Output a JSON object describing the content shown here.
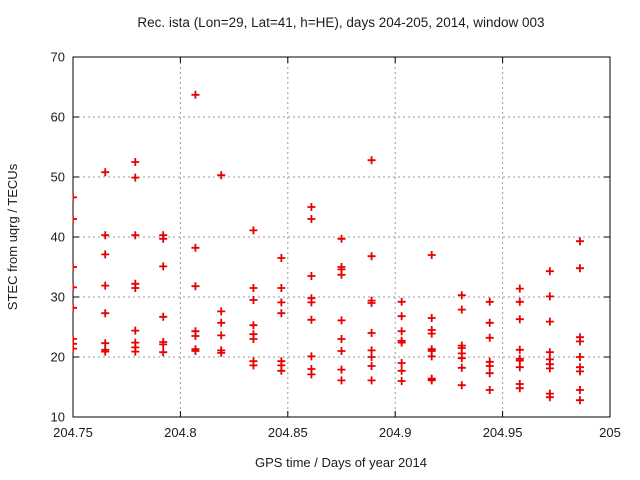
{
  "title": "Rec. ista (Lon=29, Lat=41, h=HE), days 204-205, 2014, window 003",
  "colors": {
    "background": "#ffffff",
    "marker": "#e60000",
    "grid": "#9a9a9a",
    "axis": "#000000",
    "text": "#1c1c1c"
  },
  "chart_data": {
    "type": "scatter",
    "title": "Rec. ista (Lon=29, Lat=41, h=HE), days 204-205, 2014, window 003",
    "xlabel": "GPS time / Days of year 2014",
    "ylabel": "STEC from uqrg / TECUs",
    "xlim": [
      204.75,
      205
    ],
    "ylim": [
      10,
      70
    ],
    "x_ticks": [
      204.75,
      204.8,
      204.85,
      204.9,
      204.95,
      205
    ],
    "x_tick_labels": [
      "204.75",
      "204.8",
      "204.85",
      "204.9",
      "204.95",
      "205"
    ],
    "y_ticks": [
      10,
      20,
      30,
      40,
      50,
      60,
      70
    ],
    "y_tick_labels": [
      "10",
      "20",
      "30",
      "40",
      "50",
      "60",
      "70"
    ],
    "grid": true,
    "grid_style": "dotted",
    "legend": "none",
    "marker": "plus",
    "series": [
      {
        "name": "STEC from uqrg",
        "color": "#e60000",
        "points": [
          [
            204.75,
            46.6
          ],
          [
            204.75,
            43.0
          ],
          [
            204.75,
            35.0
          ],
          [
            204.75,
            31.6
          ],
          [
            204.75,
            28.2
          ],
          [
            204.75,
            23.0
          ],
          [
            204.75,
            22.2
          ],
          [
            204.75,
            21.4
          ],
          [
            204.765,
            50.8
          ],
          [
            204.765,
            40.3
          ],
          [
            204.765,
            37.1
          ],
          [
            204.765,
            31.9
          ],
          [
            204.765,
            27.3
          ],
          [
            204.765,
            22.3
          ],
          [
            204.765,
            21.2
          ],
          [
            204.765,
            20.9
          ],
          [
            204.779,
            52.5
          ],
          [
            204.779,
            49.9
          ],
          [
            204.779,
            40.3
          ],
          [
            204.779,
            32.2
          ],
          [
            204.779,
            31.5
          ],
          [
            204.779,
            24.4
          ],
          [
            204.779,
            22.4
          ],
          [
            204.779,
            21.6
          ],
          [
            204.779,
            20.9
          ],
          [
            204.792,
            40.3
          ],
          [
            204.792,
            39.7
          ],
          [
            204.792,
            35.1
          ],
          [
            204.792,
            26.7
          ],
          [
            204.792,
            22.5
          ],
          [
            204.792,
            22.1
          ],
          [
            204.792,
            20.8
          ],
          [
            204.807,
            63.7
          ],
          [
            204.807,
            38.2
          ],
          [
            204.807,
            31.8
          ],
          [
            204.807,
            24.3
          ],
          [
            204.807,
            23.5
          ],
          [
            204.807,
            21.3
          ],
          [
            204.807,
            21.0
          ],
          [
            204.819,
            50.3
          ],
          [
            204.819,
            27.6
          ],
          [
            204.819,
            25.7
          ],
          [
            204.819,
            23.6
          ],
          [
            204.819,
            21.1
          ],
          [
            204.819,
            20.7
          ],
          [
            204.834,
            41.1
          ],
          [
            204.834,
            31.5
          ],
          [
            204.834,
            29.5
          ],
          [
            204.834,
            25.3
          ],
          [
            204.834,
            23.8
          ],
          [
            204.834,
            23.0
          ],
          [
            204.834,
            19.3
          ],
          [
            204.834,
            18.6
          ],
          [
            204.847,
            36.5
          ],
          [
            204.847,
            31.5
          ],
          [
            204.847,
            29.1
          ],
          [
            204.847,
            27.3
          ],
          [
            204.847,
            19.3
          ],
          [
            204.847,
            18.6
          ],
          [
            204.847,
            17.7
          ],
          [
            204.861,
            45.0
          ],
          [
            204.861,
            43.0
          ],
          [
            204.861,
            33.5
          ],
          [
            204.861,
            29.8
          ],
          [
            204.861,
            29.1
          ],
          [
            204.861,
            26.2
          ],
          [
            204.861,
            20.1
          ],
          [
            204.861,
            18.0
          ],
          [
            204.861,
            17.1
          ],
          [
            204.875,
            39.7
          ],
          [
            204.875,
            35.0
          ],
          [
            204.875,
            34.6
          ],
          [
            204.875,
            33.7
          ],
          [
            204.875,
            26.1
          ],
          [
            204.875,
            23.0
          ],
          [
            204.875,
            21.0
          ],
          [
            204.875,
            17.9
          ],
          [
            204.875,
            16.1
          ],
          [
            204.889,
            52.8
          ],
          [
            204.889,
            36.8
          ],
          [
            204.889,
            29.4
          ],
          [
            204.889,
            29.0
          ],
          [
            204.889,
            24.0
          ],
          [
            204.889,
            21.1
          ],
          [
            204.889,
            20.0
          ],
          [
            204.889,
            18.5
          ],
          [
            204.889,
            16.1
          ],
          [
            204.903,
            29.2
          ],
          [
            204.903,
            26.8
          ],
          [
            204.903,
            24.3
          ],
          [
            204.903,
            22.7
          ],
          [
            204.903,
            22.4
          ],
          [
            204.903,
            19.0
          ],
          [
            204.903,
            17.7
          ],
          [
            204.903,
            16.0
          ],
          [
            204.917,
            37.0
          ],
          [
            204.917,
            26.5
          ],
          [
            204.917,
            24.5
          ],
          [
            204.917,
            23.9
          ],
          [
            204.917,
            21.3
          ],
          [
            204.917,
            21.0
          ],
          [
            204.917,
            20.1
          ],
          [
            204.917,
            16.4
          ],
          [
            204.917,
            16.1
          ],
          [
            204.931,
            30.3
          ],
          [
            204.931,
            27.9
          ],
          [
            204.931,
            21.9
          ],
          [
            204.931,
            21.5
          ],
          [
            204.931,
            20.6
          ],
          [
            204.931,
            19.8
          ],
          [
            204.931,
            18.2
          ],
          [
            204.931,
            15.3
          ],
          [
            204.944,
            29.2
          ],
          [
            204.944,
            25.7
          ],
          [
            204.944,
            23.2
          ],
          [
            204.944,
            19.2
          ],
          [
            204.944,
            18.5
          ],
          [
            204.944,
            17.3
          ],
          [
            204.944,
            14.5
          ],
          [
            204.958,
            31.4
          ],
          [
            204.958,
            29.2
          ],
          [
            204.958,
            26.3
          ],
          [
            204.958,
            21.2
          ],
          [
            204.958,
            19.7
          ],
          [
            204.958,
            19.4
          ],
          [
            204.958,
            18.3
          ],
          [
            204.958,
            15.5
          ],
          [
            204.958,
            14.8
          ],
          [
            204.972,
            34.3
          ],
          [
            204.972,
            30.1
          ],
          [
            204.972,
            25.9
          ],
          [
            204.972,
            20.8
          ],
          [
            204.972,
            19.6
          ],
          [
            204.972,
            18.8
          ],
          [
            204.972,
            18.1
          ],
          [
            204.972,
            13.9
          ],
          [
            204.972,
            13.3
          ],
          [
            204.986,
            39.3
          ],
          [
            204.986,
            34.8
          ],
          [
            204.986,
            23.3
          ],
          [
            204.986,
            22.6
          ],
          [
            204.986,
            20.0
          ],
          [
            204.986,
            18.3
          ],
          [
            204.986,
            17.6
          ],
          [
            204.986,
            14.5
          ],
          [
            204.986,
            12.8
          ]
        ]
      }
    ]
  }
}
